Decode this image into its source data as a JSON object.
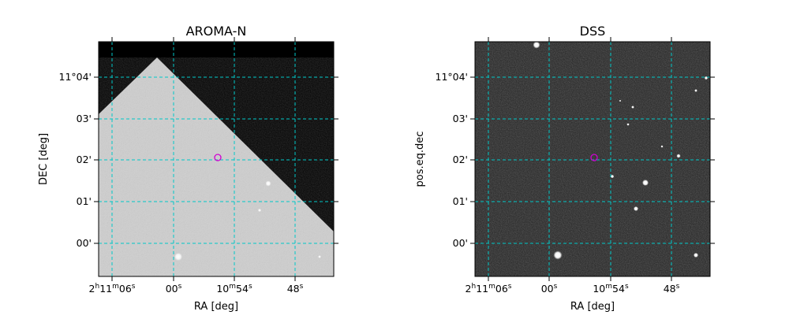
{
  "figure": {
    "panels": [
      {
        "title": "AROMA-N",
        "xlabel": "RA [deg]",
        "ylabel": "DEC [deg]",
        "ra_ticks": [
          {
            "h": "2",
            "hs": "h",
            "m": "11",
            "ms": "m",
            "s": "06",
            "ss": "s"
          },
          {
            "s": "00",
            "ss": "s"
          },
          {
            "m": "10",
            "ms": "m",
            "s": "54",
            "ss": "s"
          },
          {
            "s": "48",
            "ss": "s"
          }
        ],
        "dec_ticks": [
          "11°04'",
          "03'",
          "02'",
          "01'",
          "00'"
        ],
        "marker_color": "#d000d0",
        "grid_color": "#00c8c8"
      },
      {
        "title": "DSS",
        "xlabel": "RA [deg]",
        "ylabel": "pos.eq.dec",
        "ra_ticks": [
          {
            "h": "2",
            "hs": "h",
            "m": "11",
            "ms": "m",
            "s": "06",
            "ss": "s"
          },
          {
            "s": "00",
            "ss": "s"
          },
          {
            "m": "10",
            "ms": "m",
            "s": "54",
            "ss": "s"
          },
          {
            "s": "48",
            "ss": "s"
          }
        ],
        "dec_ticks": [
          "11°04'",
          "03'",
          "02'",
          "01'",
          "00'"
        ],
        "marker_color": "#d000d0",
        "grid_color": "#00c8c8"
      }
    ]
  }
}
